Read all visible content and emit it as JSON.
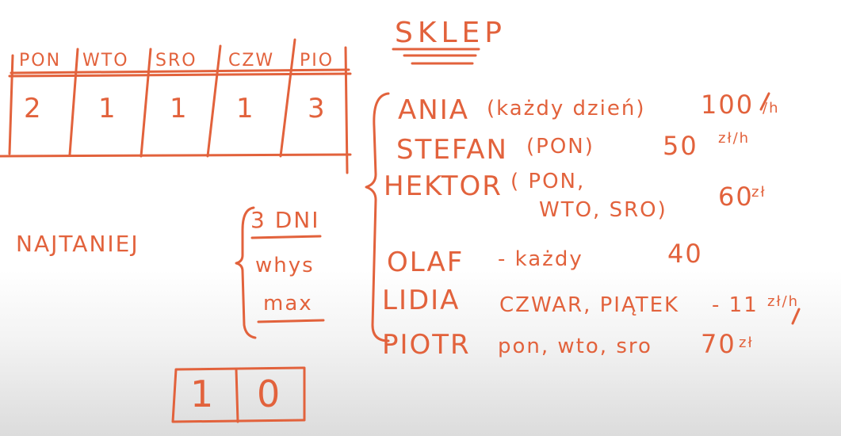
{
  "schedule": {
    "days": [
      "PON",
      "WTO",
      "SRO",
      "CZW",
      "PIO"
    ],
    "counts": [
      "2",
      "1",
      "1",
      "1",
      "3"
    ]
  },
  "shop": {
    "title": "SKLEP",
    "workers": [
      {
        "name": "ANIA",
        "availability": "(każdy dzień)",
        "rate": "100",
        "unit": "/h"
      },
      {
        "name": "STEFAN",
        "availability": "(PON)",
        "rate": "50",
        "unit": "zł/h"
      },
      {
        "name": "HEKTOR",
        "availability": "( PON,",
        "availability2": "WTO, SRO)",
        "rate": "60",
        "unit": "zł"
      },
      {
        "name": "OLAF",
        "availability": "- każdy",
        "rate": "40",
        "unit": ""
      },
      {
        "name": "LIDIA",
        "availability": "CZWAR, PIĄTEK",
        "rate": "- 11",
        "unit": "zł/h"
      },
      {
        "name": "PIOTR",
        "availability": "pon, wto, sro",
        "rate": "70",
        "unit": "zł"
      }
    ]
  },
  "constraints": {
    "label": "NAJTANIEJ",
    "items": [
      "3 DNI",
      "whys",
      "max"
    ]
  },
  "answer": [
    "1",
    "0"
  ],
  "ink_color": "#e2623c"
}
